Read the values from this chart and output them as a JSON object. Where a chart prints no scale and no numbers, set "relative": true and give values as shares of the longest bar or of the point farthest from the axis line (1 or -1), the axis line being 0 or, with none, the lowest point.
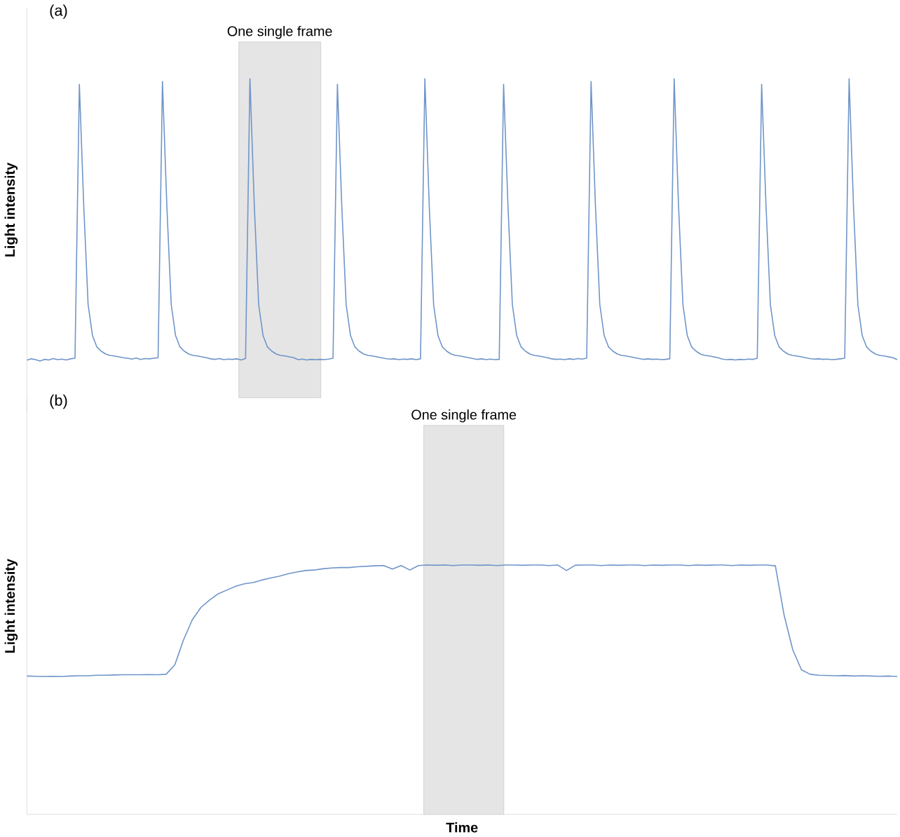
{
  "chart_data": [
    {
      "type": "line",
      "title": "(a)",
      "ylabel": "Light intensity",
      "relative": true,
      "categories": [
        null,
        null,
        null,
        null,
        null,
        null,
        null,
        null,
        null,
        null,
        null,
        null,
        null,
        null,
        null,
        null,
        null,
        null,
        null,
        null,
        null,
        null,
        null,
        null,
        null,
        null,
        null,
        null,
        null,
        null,
        null,
        null,
        null,
        null,
        null,
        null,
        null,
        null,
        null,
        null,
        null,
        null,
        null,
        null,
        null,
        null,
        null,
        null,
        null,
        null,
        null,
        null,
        null,
        null,
        null,
        null,
        null,
        null,
        null,
        null,
        null,
        null,
        null,
        null,
        null,
        null,
        null,
        null,
        null,
        null,
        null,
        null,
        null,
        null,
        null,
        null,
        null,
        null,
        null,
        null,
        null,
        null,
        null,
        null,
        null,
        null,
        null,
        null,
        null,
        null,
        null,
        null,
        null,
        null,
        null,
        null,
        null,
        null,
        null,
        null,
        null,
        null,
        null,
        null,
        null,
        null,
        null,
        null,
        null,
        null,
        null,
        null,
        null,
        null,
        null,
        null,
        null,
        null,
        null,
        null,
        null,
        null,
        null,
        null,
        null,
        null,
        null,
        null,
        null,
        null,
        null,
        null,
        null,
        null,
        null,
        null,
        null,
        null,
        null,
        null,
        null,
        null,
        null,
        null,
        null,
        null,
        null,
        null,
        null,
        null,
        null,
        null,
        null,
        null,
        null,
        null,
        null,
        null,
        null,
        null,
        null,
        null,
        null,
        null,
        null,
        null,
        null,
        null,
        null,
        null,
        null,
        null,
        null,
        null,
        null,
        null,
        null,
        null,
        null,
        null,
        null,
        null,
        null,
        null,
        null,
        null,
        null,
        null,
        null,
        null,
        null,
        null,
        null,
        null,
        null,
        null,
        null,
        null,
        null,
        null
      ],
      "series": [
        {
          "color": "#6f95c9",
          "values": [
            0.003,
            0.008,
            0.005,
            0,
            0.006,
            0.004,
            0.009,
            0.005,
            0.007,
            0.004,
            0.008,
            0.01,
            0.98,
            0.55,
            0.2,
            0.09,
            0.05,
            0.035,
            0.025,
            0.02,
            0.018,
            0.015,
            0.012,
            0.01,
            0.007,
            0.011,
            0.006,
            0.009,
            0.008,
            0.01,
            0.012,
            0.99,
            0.55,
            0.2,
            0.09,
            0.05,
            0.035,
            0.025,
            0.02,
            0.018,
            0.015,
            0.012,
            0.008,
            0.006,
            0.009,
            0.005,
            0.007,
            0.006,
            0.008,
            0.004,
            0.009,
            1,
            0.55,
            0.2,
            0.09,
            0.05,
            0.035,
            0.025,
            0.02,
            0.018,
            0.015,
            0.012,
            0.005,
            0.007,
            0.004,
            0.006,
            0.005,
            0.006,
            0.005,
            0.007,
            0.01,
            0.98,
            0.55,
            0.2,
            0.09,
            0.05,
            0.035,
            0.025,
            0.02,
            0.018,
            0.015,
            0.012,
            0.009,
            0.007,
            0.008,
            0.005,
            0.007,
            0.006,
            0.008,
            0.005,
            0.008,
            1,
            0.55,
            0.2,
            0.09,
            0.05,
            0.035,
            0.025,
            0.02,
            0.018,
            0.015,
            0.012,
            0.009,
            0.006,
            0.008,
            0.005,
            0.007,
            0.005,
            0.006,
            0.98,
            0.55,
            0.2,
            0.09,
            0.05,
            0.035,
            0.025,
            0.02,
            0.018,
            0.015,
            0.012,
            0.008,
            0.006,
            0.007,
            0.005,
            0.008,
            0.006,
            0.009,
            0.007,
            0.01,
            0.99,
            0.55,
            0.2,
            0.09,
            0.05,
            0.035,
            0.025,
            0.02,
            0.018,
            0.015,
            0.012,
            0.009,
            0.006,
            0.008,
            0.006,
            0.007,
            0.005,
            0.006,
            0.008,
            1,
            0.55,
            0.2,
            0.09,
            0.05,
            0.035,
            0.025,
            0.02,
            0.018,
            0.015,
            0.012,
            0.007,
            0.005,
            0.006,
            0.004,
            0.006,
            0.005,
            0.007,
            0.006,
            0.01,
            0.98,
            0.55,
            0.2,
            0.09,
            0.05,
            0.035,
            0.025,
            0.02,
            0.018,
            0.015,
            0.012,
            0.009,
            0.007,
            0.008,
            0.006,
            0.007,
            0.005,
            0.006,
            0.008,
            0.01,
            1,
            0.55,
            0.2,
            0.09,
            0.05,
            0.035,
            0.025,
            0.02,
            0.018,
            0.015,
            0.012,
            0.005
          ]
        }
      ],
      "annotations": [
        "One single frame"
      ]
    },
    {
      "type": "line",
      "title": "(b)",
      "ylabel": "Light intensity",
      "xlabel": "Time",
      "relative": true,
      "categories": [
        null,
        null,
        null,
        null,
        null,
        null,
        null,
        null,
        null,
        null,
        null,
        null,
        null,
        null,
        null,
        null,
        null,
        null,
        null,
        null,
        null,
        null,
        null,
        null,
        null,
        null,
        null,
        null,
        null,
        null,
        null,
        null,
        null,
        null,
        null,
        null,
        null,
        null,
        null,
        null,
        null,
        null,
        null,
        null,
        null,
        null,
        null,
        null,
        null,
        null,
        null,
        null,
        null,
        null,
        null,
        null,
        null,
        null,
        null,
        null,
        null,
        null,
        null,
        null,
        null,
        null,
        null,
        null,
        null,
        null,
        null,
        null,
        null,
        null,
        null,
        null,
        null,
        null,
        null,
        null,
        null,
        null,
        null,
        null,
        null,
        null,
        null,
        null,
        null,
        null,
        null,
        null,
        null,
        null,
        null,
        null,
        null,
        null,
        null,
        null,
        null
      ],
      "series": [
        {
          "color": "#6f95c9",
          "values": [
            0.555,
            0.554,
            0.553,
            0.554,
            0.553,
            0.555,
            0.556,
            0.556,
            0.558,
            0.558,
            0.559,
            0.56,
            0.56,
            0.56,
            0.561,
            0.56,
            0.562,
            0.6,
            0.7,
            0.78,
            0.83,
            0.86,
            0.885,
            0.9,
            0.915,
            0.925,
            0.93,
            0.94,
            0.948,
            0.955,
            0.965,
            0.972,
            0.978,
            0.98,
            0.985,
            0.988,
            0.99,
            0.99,
            0.993,
            0.995,
            0.997,
            0.998,
            0.984,
            0.998,
            0.98,
            0.998,
            1.0,
            0.999,
            1.0,
            0.998,
            1.0,
            1.0,
            0.999,
            1.0,
            0.998,
            1.0,
            1.0,
            0.999,
            1.0,
            1.0,
            0.998,
            1.0,
            0.978,
            0.999,
            1.0,
            1.0,
            0.998,
            1.0,
            0.999,
            1.0,
            1.0,
            0.998,
            1.0,
            0.999,
            1.0,
            1.0,
            0.998,
            1.0,
            0.999,
            1.0,
            1.0,
            0.998,
            1.0,
            0.999,
            1.0,
            1.0,
            0.997,
            0.8,
            0.66,
            0.58,
            0.562,
            0.558,
            0.557,
            0.556,
            0.557,
            0.555,
            0.556,
            0.555,
            0.554,
            0.555,
            0.553
          ]
        }
      ],
      "annotations": [
        "One single frame"
      ]
    }
  ]
}
